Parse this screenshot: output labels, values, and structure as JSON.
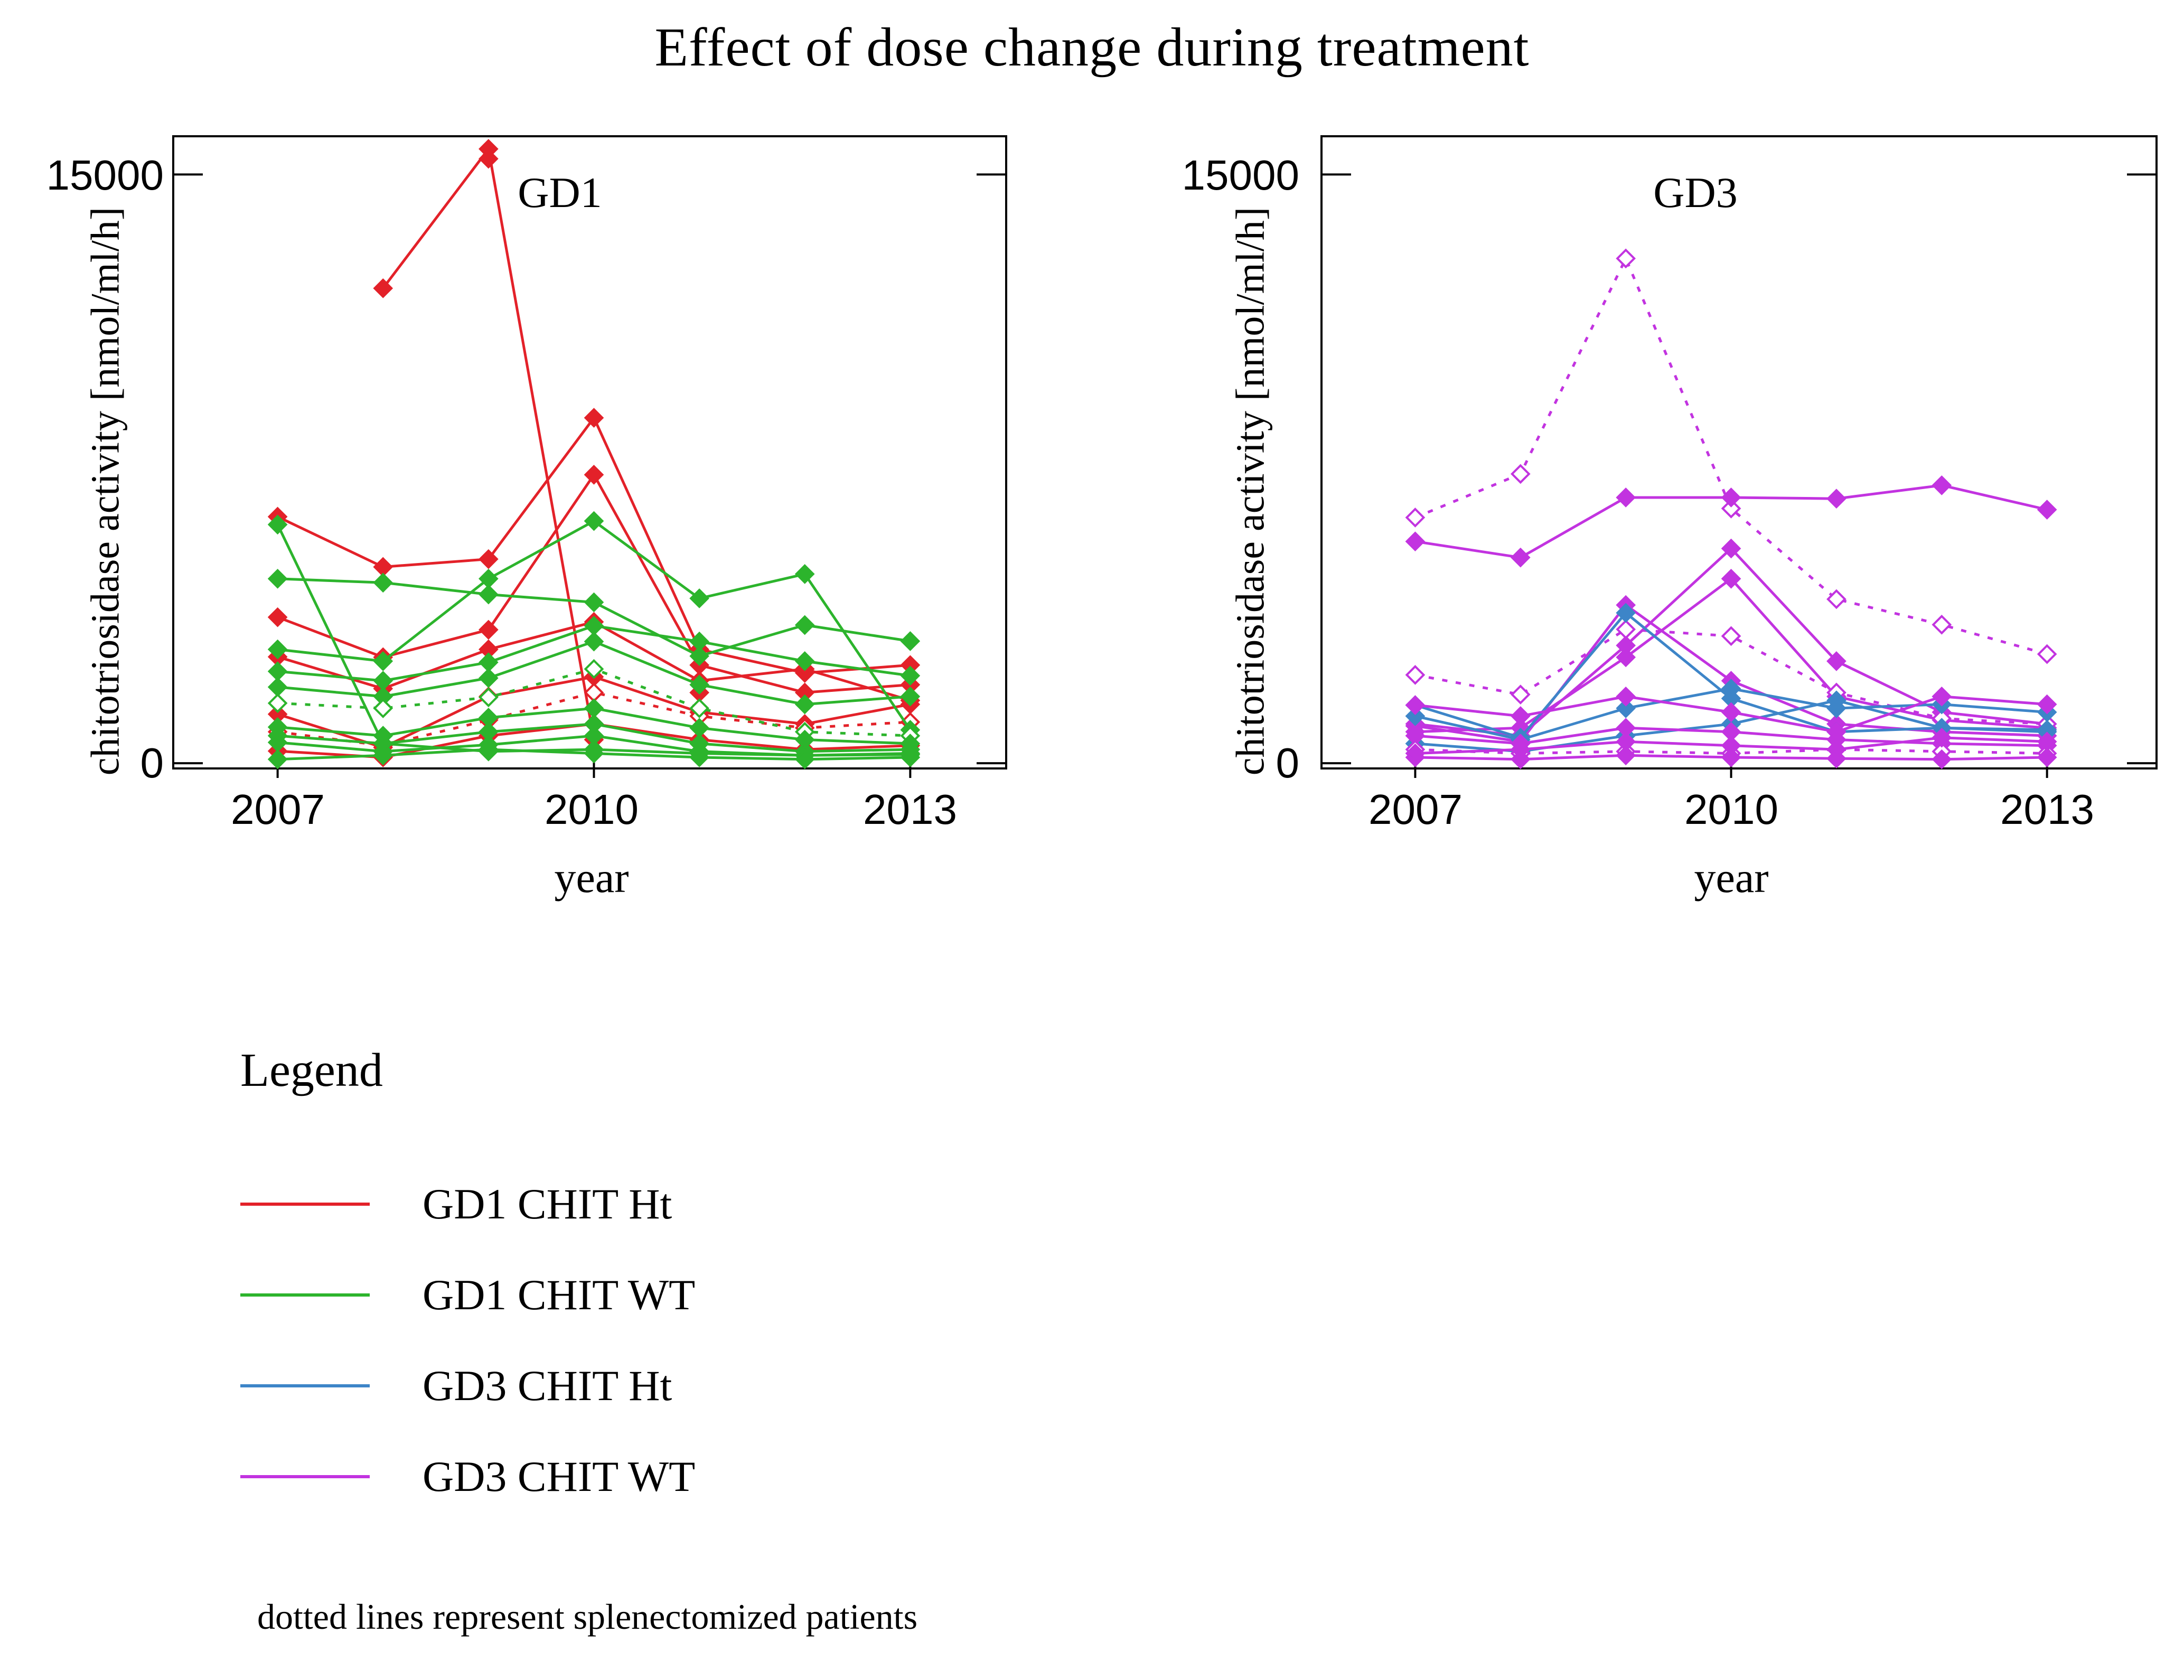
{
  "title": "Effect of dose change during treatment",
  "footnote": "dotted lines represent splenectomized patients",
  "legend": {
    "title": "Legend",
    "items": [
      {
        "label": "GD1 CHIT Ht",
        "color": "#e32129"
      },
      {
        "label": "GD1 CHIT WT",
        "color": "#2cb42c"
      },
      {
        "label": "GD3 CHIT Ht",
        "color": "#3d85c8"
      },
      {
        "label": "GD3 CHIT WT",
        "color": "#c233e0"
      }
    ]
  },
  "colors": {
    "GD1 CHIT Ht": "#e32129",
    "GD1 CHIT WT": "#2cb42c",
    "GD3 CHIT Ht": "#3d85c8",
    "GD3 CHIT WT": "#c233e0"
  },
  "chart_data": [
    {
      "type": "line",
      "panel_label": "GD1",
      "xlabel": "year",
      "ylabel": "chitotriosidase activity [nmol/ml/h]",
      "x": [
        2007,
        2008,
        2009,
        2010,
        2011,
        2012,
        2013
      ],
      "xtick_values": [
        2007,
        2010,
        2013
      ],
      "xtick_labels": [
        "2007",
        "2010",
        "2013"
      ],
      "ytick_values": [
        15000,
        0
      ],
      "ytick_labels": [
        "15000",
        "0"
      ],
      "xlim": [
        2006.0,
        2013.92
      ],
      "ylim": [
        -160,
        16000
      ],
      "grid": false,
      "series": [
        {
          "group": "GD1 CHIT Ht",
          "dotted": false,
          "values": [
            null,
            12100,
            15650,
            600,
            null,
            null,
            null
          ]
        },
        {
          "group": "GD1 CHIT Ht",
          "dotted": false,
          "values": [
            null,
            null,
            15400,
            null,
            1800,
            null,
            null
          ]
        },
        {
          "group": "GD1 CHIT Ht",
          "dotted": false,
          "values": [
            6280,
            5000,
            5200,
            8800,
            2900,
            2300,
            2500
          ]
        },
        {
          "group": "GD1 CHIT Ht",
          "dotted": false,
          "values": [
            3720,
            2700,
            3400,
            7350,
            2500,
            1800,
            2000
          ]
        },
        {
          "group": "GD1 CHIT Ht",
          "dotted": false,
          "values": [
            2710,
            1900,
            2900,
            3600,
            2100,
            2400,
            1600
          ]
        },
        {
          "group": "GD1 CHIT Ht",
          "dotted": false,
          "values": [
            1250,
            400,
            1700,
            2200,
            1300,
            1000,
            1500
          ]
        },
        {
          "group": "GD1 CHIT Ht",
          "dotted": true,
          "values": [
            800,
            450,
            1100,
            1800,
            1200,
            900,
            1050
          ]
        },
        {
          "group": "GD1 CHIT Ht",
          "dotted": false,
          "values": [
            310,
            150,
            700,
            1000,
            600,
            350,
            450
          ]
        },
        {
          "group": "GD1 CHIT WT",
          "dotted": false,
          "values": [
            6080,
            500,
            300,
            350,
            250,
            200,
            220
          ]
        },
        {
          "group": "GD1 CHIT WT",
          "dotted": false,
          "values": [
            4700,
            4600,
            4300,
            4100,
            2730,
            3520,
            3110
          ]
        },
        {
          "group": "GD1 CHIT WT",
          "dotted": false,
          "values": [
            2900,
            2600,
            4700,
            6170,
            4200,
            4820,
            850
          ]
        },
        {
          "group": "GD1 CHIT WT",
          "dotted": false,
          "values": [
            2340,
            2100,
            2570,
            3500,
            3100,
            2600,
            2230
          ]
        },
        {
          "group": "GD1 CHIT WT",
          "dotted": false,
          "values": [
            1940,
            1700,
            2170,
            3100,
            2000,
            1500,
            1700
          ]
        },
        {
          "group": "GD1 CHIT WT",
          "dotted": true,
          "values": [
            1530,
            1400,
            1680,
            2400,
            1400,
            800,
            700
          ]
        },
        {
          "group": "GD1 CHIT WT",
          "dotted": false,
          "values": [
            920,
            700,
            1160,
            1400,
            900,
            600,
            500
          ]
        },
        {
          "group": "GD1 CHIT WT",
          "dotted": false,
          "values": [
            700,
            500,
            800,
            1000,
            500,
            300,
            350
          ]
        },
        {
          "group": "GD1 CHIT WT",
          "dotted": false,
          "values": [
            530,
            300,
            470,
            700,
            300,
            200,
            250
          ]
        },
        {
          "group": "GD1 CHIT WT",
          "dotted": false,
          "values": [
            100,
            200,
            350,
            250,
            150,
            100,
            150
          ]
        }
      ]
    },
    {
      "type": "line",
      "panel_label": "GD3",
      "xlabel": "year",
      "ylabel": "chitotriosidase activity [nmol/ml/h]",
      "x": [
        2007,
        2008,
        2009,
        2010,
        2011,
        2012,
        2013
      ],
      "xtick_values": [
        2007,
        2010,
        2013
      ],
      "xtick_labels": [
        "2007",
        "2010",
        "2013"
      ],
      "ytick_values": [
        15000,
        0
      ],
      "ytick_labels": [
        "15000",
        "0"
      ],
      "xlim": [
        2006.1,
        2014.05
      ],
      "ylim": [
        -160,
        16000
      ],
      "grid": false,
      "series": [
        {
          "group": "GD3 CHIT WT",
          "dotted": true,
          "values": [
            6260,
            7370,
            12860,
            6490,
            4180,
            3530,
            2780
          ]
        },
        {
          "group": "GD3 CHIT WT",
          "dotted": false,
          "values": [
            5650,
            5240,
            6770,
            6770,
            6740,
            7080,
            6460
          ]
        },
        {
          "group": "GD3 CHIT WT",
          "dotted": false,
          "values": [
            1000,
            700,
            3000,
            5470,
            2600,
            1300,
            1000
          ]
        },
        {
          "group": "GD3 CHIT WT",
          "dotted": false,
          "values": [
            800,
            900,
            2700,
            4700,
            1700,
            1100,
            900
          ]
        },
        {
          "group": "GD3 CHIT WT",
          "dotted": false,
          "values": [
            950,
            550,
            4030,
            2100,
            1000,
            800,
            700
          ]
        },
        {
          "group": "GD3 CHIT WT",
          "dotted": true,
          "values": [
            2250,
            1750,
            3410,
            3240,
            1800,
            1140,
            1000
          ]
        },
        {
          "group": "GD3 CHIT Ht",
          "dotted": false,
          "values": [
            1480,
            650,
            3830,
            1650,
            800,
            900,
            850
          ]
        },
        {
          "group": "GD3 CHIT Ht",
          "dotted": false,
          "values": [
            1200,
            600,
            1400,
            1900,
            1400,
            1500,
            1300
          ]
        },
        {
          "group": "GD3 CHIT Ht",
          "dotted": false,
          "values": [
            500,
            300,
            700,
            1000,
            1600,
            900,
            800
          ]
        },
        {
          "group": "GD3 CHIT WT",
          "dotted": false,
          "values": [
            1480,
            1200,
            1700,
            1300,
            800,
            1700,
            1500
          ]
        },
        {
          "group": "GD3 CHIT WT",
          "dotted": false,
          "values": [
            700,
            500,
            900,
            800,
            600,
            500,
            450
          ]
        },
        {
          "group": "GD3 CHIT WT",
          "dotted": true,
          "values": [
            350,
            250,
            300,
            250,
            350,
            300,
            250
          ]
        },
        {
          "group": "GD3 CHIT WT",
          "dotted": false,
          "values": [
            150,
            100,
            200,
            150,
            120,
            100,
            150
          ]
        },
        {
          "group": "GD3 CHIT WT",
          "dotted": false,
          "values": [
            250,
            350,
            550,
            450,
            350,
            650,
            550
          ]
        }
      ]
    }
  ]
}
